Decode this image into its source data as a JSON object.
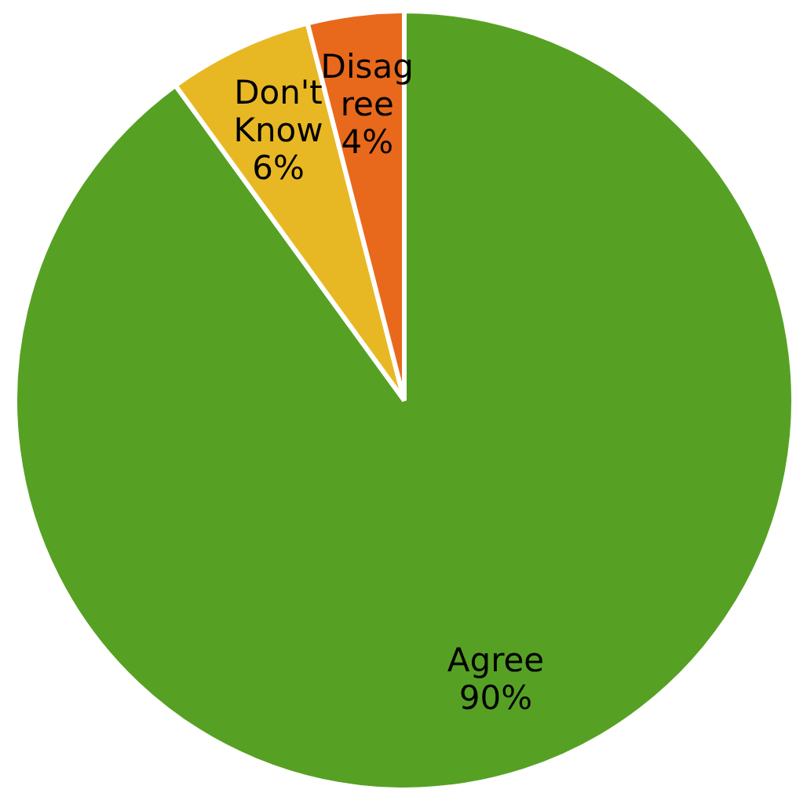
{
  "chart_data": {
    "type": "pie",
    "categories": [
      "Agree",
      "Don't Know",
      "Disagree"
    ],
    "values": [
      90,
      6,
      4
    ],
    "colors": [
      "#56a124",
      "#e8b824",
      "#e8691c"
    ],
    "value_labels": [
      "90%",
      "6%",
      "4%"
    ],
    "legend": false
  }
}
